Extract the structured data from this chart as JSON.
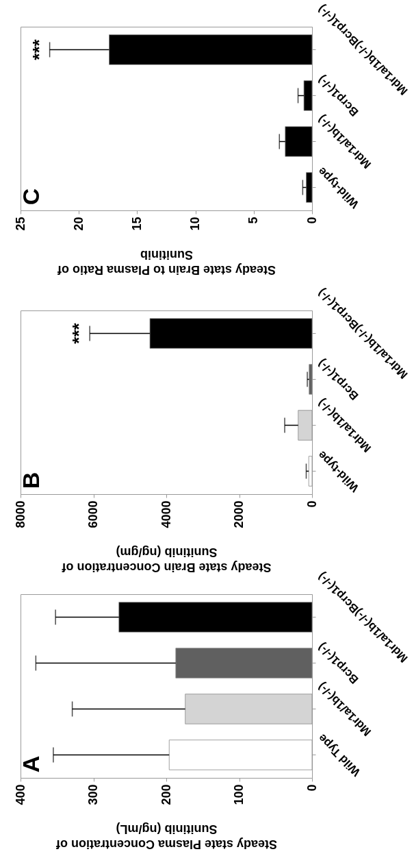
{
  "chart_data": [
    {
      "type": "bar",
      "orientation": "horizontal",
      "title": "C",
      "xlabel": "Steady state Brain to Plasma Ratio of Sunitinib",
      "categories": [
        "Mdr1a/1b(-/-)Bcrp1(-/-)",
        "Bcrp1(-/-)",
        "Mdr1a/1b(-/-)",
        "Wild-type"
      ],
      "values": [
        17.4,
        0.7,
        2.3,
        0.5
      ],
      "errors": [
        [
          17.4,
          22.5
        ],
        [
          0.7,
          1.2
        ],
        [
          2.3,
          2.8
        ],
        [
          0.5,
          0.8
        ]
      ],
      "colors": [
        "#000000",
        "#000000",
        "#000000",
        "#000000"
      ],
      "xlim": [
        25,
        0
      ],
      "xticks": [
        25,
        20,
        15,
        10,
        5,
        0
      ],
      "annotations": [
        {
          "text": "***",
          "x": 22.5,
          "y": "Mdr1a/1b(-/-)Bcrp1(-/-)"
        }
      ]
    },
    {
      "type": "bar",
      "orientation": "horizontal",
      "title": "B",
      "xlabel": "Steady state Brain Concentration of Sunitinib (ng/gm)",
      "categories": [
        "Mdr1a/1b(-/-)Bcrp1(-/-)",
        "Bcrp1(-/-)",
        "Mdr1a/1b(-/-)",
        "Wild-type"
      ],
      "values": [
        4450,
        80,
        380,
        90
      ],
      "errors": [
        [
          4450,
          6100
        ],
        [
          80,
          130
        ],
        [
          380,
          750
        ],
        [
          90,
          160
        ]
      ],
      "colors": [
        "#000000",
        "#606060",
        "#d4d4d4",
        "#ffffff"
      ],
      "xlim": [
        8000,
        0
      ],
      "xticks": [
        8000,
        6000,
        4000,
        2000,
        0
      ],
      "annotations": [
        {
          "text": "***",
          "x": 6100,
          "y": "Mdr1a/1b(-/-)Bcrp1(-/-)"
        }
      ]
    },
    {
      "type": "bar",
      "orientation": "horizontal",
      "title": "A",
      "xlabel": "Steady state Plasma Concentration of Sunitinib (ng/mL)",
      "categories": [
        "Mdr1a/1b(-/-)Bcrp1(-/-)",
        "Bcrp1(-/-)",
        "Mdr1a/1b(-/-)",
        "Wild Type"
      ],
      "values": [
        265,
        187,
        174,
        196
      ],
      "errors": [
        [
          265,
          352
        ],
        [
          187,
          379
        ],
        [
          174,
          329
        ],
        [
          196,
          355
        ]
      ],
      "colors": [
        "#000000",
        "#606060",
        "#d4d4d4",
        "#ffffff"
      ],
      "xlim": [
        400,
        0
      ],
      "xticks": [
        400,
        300,
        200,
        100,
        0
      ]
    }
  ]
}
